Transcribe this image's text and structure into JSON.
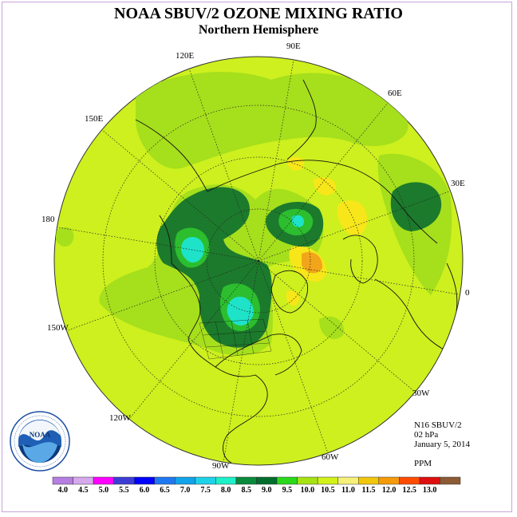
{
  "title": "NOAA SBUV/2 OZONE MIXING RATIO",
  "subtitle": "Northern Hemisphere",
  "longitude_labels": [
    "90E",
    "60E",
    "30E",
    "0",
    "30W",
    "60W",
    "90W",
    "120W",
    "150W",
    "180",
    "150E",
    "120E"
  ],
  "info": {
    "satellite": "N16 SBUV/2",
    "level": "02 hPa",
    "date": "January 5, 2014",
    "units": "PPM"
  },
  "logo": {
    "text": "NOAA",
    "ring_text": "NATIONAL OCEANIC AND ATMOSPHERIC ADMINISTRATION · U.S. DEPARTMENT OF COMMERCE"
  },
  "legend": {
    "ticks": [
      "4.0",
      "4.5",
      "5.0",
      "5.5",
      "6.0",
      "6.5",
      "7.0",
      "7.5",
      "8.0",
      "8.5",
      "9.0",
      "9.5",
      "10.0",
      "10.5",
      "11.0",
      "11.5",
      "12.0",
      "12.5",
      "13.0"
    ],
    "colors": [
      "#b57ee0",
      "#d6a8ec",
      "#ff00ff",
      "#3d3dd6",
      "#0000ff",
      "#1f78f0",
      "#12a3ea",
      "#1ed2e8",
      "#1ef0c8",
      "#0a8a3c",
      "#006d2c",
      "#2bd81b",
      "#a7e212",
      "#d3f21a",
      "#f5f07a",
      "#f0c70d",
      "#f59a0a",
      "#ff4b00",
      "#dd0f0f",
      "#8c5a34"
    ]
  },
  "colors": {
    "base": "#cdf01e",
    "band_light": "#a6df1c",
    "band_dark": "#1c7a2c",
    "high_cyan": "#1ee3c8",
    "mid_green": "#2cbe2e",
    "yellow": "#f7e619",
    "orange": "#f2a51a"
  }
}
